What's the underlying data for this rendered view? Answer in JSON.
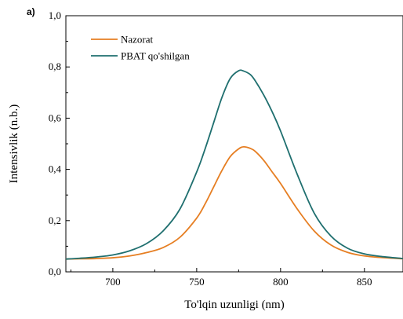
{
  "chart_data": {
    "type": "line",
    "panel_label": "a)",
    "title": "",
    "xlabel": "To'lqin uzunligi (nm)",
    "ylabel": "Intensivlik (n.b.)",
    "xlim": [
      672,
      873
    ],
    "ylim": [
      0,
      1.0
    ],
    "xticks": [
      "700",
      "750",
      "800",
      "850"
    ],
    "yticks": [
      "0,0",
      "0,2",
      "0,4",
      "0,6",
      "0,8",
      "1,0"
    ],
    "grid": false,
    "legend_position": "top-left",
    "x": [
      672,
      680,
      690,
      700,
      710,
      720,
      730,
      740,
      750,
      755,
      760,
      765,
      770,
      775,
      778,
      782,
      785,
      790,
      795,
      800,
      810,
      820,
      830,
      840,
      850,
      860,
      873
    ],
    "series": [
      {
        "name": "Nazorat",
        "color": "#e67e22",
        "values": [
          0.05,
          0.051,
          0.052,
          0.055,
          0.062,
          0.075,
          0.095,
          0.135,
          0.21,
          0.265,
          0.33,
          0.395,
          0.45,
          0.48,
          0.488,
          0.482,
          0.47,
          0.435,
          0.39,
          0.345,
          0.245,
          0.16,
          0.105,
          0.076,
          0.062,
          0.056,
          0.051
        ]
      },
      {
        "name": "PBAT qo'shilgan",
        "color": "#1f6f6f",
        "values": [
          0.05,
          0.053,
          0.058,
          0.066,
          0.082,
          0.11,
          0.16,
          0.245,
          0.39,
          0.48,
          0.58,
          0.68,
          0.755,
          0.785,
          0.784,
          0.77,
          0.745,
          0.69,
          0.625,
          0.55,
          0.38,
          0.23,
          0.14,
          0.092,
          0.07,
          0.06,
          0.052
        ]
      }
    ]
  }
}
